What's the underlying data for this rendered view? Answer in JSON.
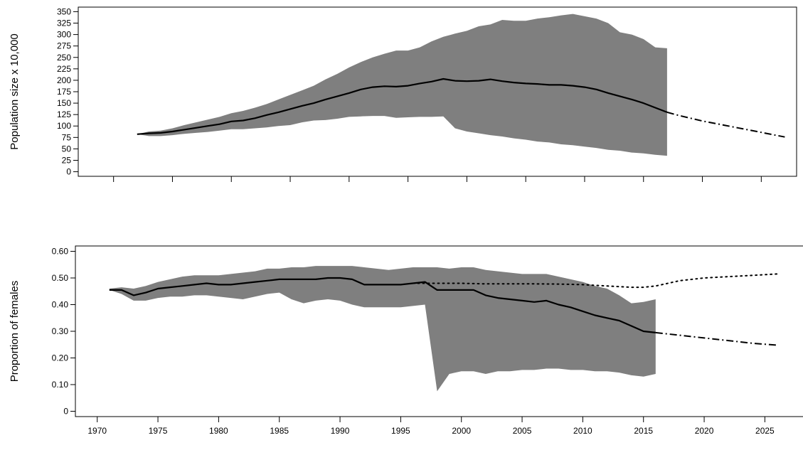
{
  "chart_data": [
    {
      "type": "area",
      "title": "",
      "xlabel": "",
      "ylabel": "Population size x 10,000",
      "xlim": [
        1967,
        2028
      ],
      "ylim": [
        -10,
        360
      ],
      "yticks": [
        0,
        25,
        50,
        75,
        100,
        125,
        150,
        175,
        200,
        225,
        250,
        275,
        300,
        325,
        350
      ],
      "xticks": [
        1970,
        1975,
        1980,
        1985,
        1990,
        1995,
        2000,
        2005,
        2010,
        2015,
        2020,
        2025
      ],
      "show_x_tick_labels": false,
      "grid": false,
      "band": {
        "color": "#7f7f7f",
        "x": [
          1972,
          1973,
          1974,
          1975,
          1976,
          1977,
          1978,
          1979,
          1980,
          1981,
          1982,
          1983,
          1984,
          1985,
          1986,
          1987,
          1988,
          1989,
          1990,
          1991,
          1992,
          1993,
          1994,
          1995,
          1996,
          1997,
          1998,
          1999,
          2000,
          2001,
          2002,
          2003,
          2004,
          2005,
          2006,
          2007,
          2008,
          2009,
          2010,
          2011,
          2012,
          2013,
          2014,
          2015,
          2016,
          2017
        ],
        "upper": [
          82,
          88,
          90,
          95,
          102,
          108,
          114,
          120,
          128,
          133,
          140,
          148,
          158,
          168,
          178,
          188,
          202,
          214,
          228,
          240,
          250,
          258,
          265,
          265,
          272,
          285,
          295,
          302,
          308,
          318,
          322,
          332,
          330,
          330,
          335,
          338,
          342,
          345,
          340,
          335,
          325,
          305,
          300,
          290,
          272,
          270
        ],
        "lower": [
          82,
          78,
          78,
          80,
          83,
          85,
          87,
          90,
          93,
          93,
          95,
          97,
          100,
          102,
          108,
          112,
          113,
          116,
          120,
          121,
          122,
          122,
          118,
          119,
          120,
          120,
          121,
          95,
          88,
          84,
          80,
          77,
          73,
          70,
          66,
          64,
          60,
          58,
          55,
          52,
          48,
          46,
          42,
          40,
          37,
          35
        ]
      },
      "series": [
        {
          "style": "solid",
          "x": [
            1972,
            1973,
            1974,
            1975,
            1976,
            1977,
            1978,
            1979,
            1980,
            1981,
            1982,
            1983,
            1984,
            1985,
            1986,
            1987,
            1988,
            1989,
            1990,
            1991,
            1992,
            1993,
            1994,
            1995,
            1996,
            1997,
            1998,
            1999,
            2000,
            2001,
            2002,
            2003,
            2004,
            2005,
            2006,
            2007,
            2008,
            2009,
            2010,
            2011,
            2012,
            2013,
            2014,
            2015,
            2016,
            2017
          ],
          "values": [
            82,
            84,
            85,
            88,
            92,
            96,
            100,
            104,
            110,
            112,
            117,
            124,
            130,
            137,
            144,
            150,
            158,
            165,
            172,
            180,
            185,
            187,
            186,
            188,
            193,
            197,
            203,
            199,
            198,
            199,
            202,
            198,
            195,
            193,
            192,
            190,
            190,
            188,
            185,
            180,
            172,
            165,
            158,
            150,
            140,
            130
          ]
        },
        {
          "style": "dashdot",
          "x": [
            2017,
            2018,
            2019,
            2020,
            2021,
            2022,
            2023,
            2024,
            2025,
            2026,
            2027
          ],
          "values": [
            130,
            123,
            117,
            111,
            106,
            101,
            96,
            91,
            86,
            81,
            76
          ]
        }
      ]
    },
    {
      "type": "area",
      "title": "",
      "xlabel": "",
      "ylabel": "Proportion of females",
      "xlim": [
        1968.2,
        2028.2
      ],
      "ylim": [
        -0.02,
        0.62
      ],
      "yticks": [
        0,
        0.1,
        0.2,
        0.3,
        0.4,
        0.5,
        0.6
      ],
      "ytick_labels": [
        "0",
        "0.10",
        "0.20",
        "0.30",
        "0.40",
        "0.50",
        "0.60"
      ],
      "xticks": [
        1970,
        1975,
        1980,
        1985,
        1990,
        1995,
        2000,
        2005,
        2010,
        2015,
        2020,
        2025
      ],
      "grid": false,
      "band": {
        "color": "#7f7f7f",
        "x": [
          1971,
          1972,
          1973,
          1974,
          1975,
          1976,
          1977,
          1978,
          1979,
          1980,
          1981,
          1982,
          1983,
          1984,
          1985,
          1986,
          1987,
          1988,
          1989,
          1990,
          1991,
          1992,
          1993,
          1994,
          1995,
          1996,
          1997,
          1998,
          1999,
          2000,
          2001,
          2002,
          2003,
          2004,
          2005,
          2006,
          2007,
          2008,
          2009,
          2010,
          2011,
          2012,
          2013,
          2014,
          2015,
          2016
        ],
        "upper": [
          0.46,
          0.465,
          0.46,
          0.47,
          0.485,
          0.495,
          0.505,
          0.51,
          0.51,
          0.51,
          0.515,
          0.52,
          0.525,
          0.535,
          0.535,
          0.54,
          0.54,
          0.545,
          0.545,
          0.545,
          0.545,
          0.54,
          0.535,
          0.53,
          0.535,
          0.54,
          0.54,
          0.54,
          0.535,
          0.54,
          0.54,
          0.53,
          0.525,
          0.52,
          0.515,
          0.515,
          0.515,
          0.505,
          0.495,
          0.485,
          0.47,
          0.46,
          0.435,
          0.405,
          0.41,
          0.42
        ],
        "lower": [
          0.455,
          0.44,
          0.415,
          0.415,
          0.425,
          0.43,
          0.43,
          0.435,
          0.435,
          0.43,
          0.425,
          0.42,
          0.43,
          0.44,
          0.445,
          0.42,
          0.405,
          0.415,
          0.42,
          0.415,
          0.4,
          0.39,
          0.39,
          0.39,
          0.39,
          0.395,
          0.4,
          0.075,
          0.14,
          0.15,
          0.15,
          0.14,
          0.15,
          0.15,
          0.155,
          0.155,
          0.16,
          0.16,
          0.155,
          0.155,
          0.15,
          0.15,
          0.145,
          0.135,
          0.13,
          0.14
        ]
      },
      "series": [
        {
          "style": "solid",
          "x": [
            1971,
            1972,
            1973,
            1974,
            1975,
            1976,
            1977,
            1978,
            1979,
            1980,
            1981,
            1982,
            1983,
            1984,
            1985,
            1986,
            1987,
            1988,
            1989,
            1990,
            1991,
            1992,
            1993,
            1994,
            1995,
            1996,
            1997,
            1998,
            1999,
            2000,
            2001,
            2002,
            2003,
            2004,
            2005,
            2006,
            2007,
            2008,
            2009,
            2010,
            2011,
            2012,
            2013,
            2014,
            2015,
            2016
          ],
          "values": [
            0.455,
            0.455,
            0.435,
            0.445,
            0.46,
            0.465,
            0.47,
            0.475,
            0.48,
            0.475,
            0.475,
            0.48,
            0.485,
            0.49,
            0.495,
            0.495,
            0.495,
            0.495,
            0.5,
            0.5,
            0.495,
            0.475,
            0.475,
            0.475,
            0.475,
            0.48,
            0.485,
            0.455,
            0.455,
            0.455,
            0.455,
            0.435,
            0.425,
            0.42,
            0.415,
            0.41,
            0.415,
            0.4,
            0.39,
            0.375,
            0.36,
            0.35,
            0.34,
            0.32,
            0.3,
            0.295
          ]
        },
        {
          "style": "dotted",
          "x": [
            1996,
            1998,
            2000,
            2002,
            2004,
            2006,
            2008,
            2010,
            2012,
            2014,
            2015,
            2016,
            2018,
            2020,
            2022,
            2024,
            2026
          ],
          "values": [
            0.48,
            0.48,
            0.48,
            0.478,
            0.478,
            0.478,
            0.477,
            0.475,
            0.47,
            0.465,
            0.465,
            0.47,
            0.49,
            0.5,
            0.505,
            0.51,
            0.515
          ]
        },
        {
          "style": "dashdot",
          "x": [
            2016,
            2018,
            2020,
            2022,
            2024,
            2026
          ],
          "values": [
            0.295,
            0.285,
            0.275,
            0.265,
            0.255,
            0.248
          ]
        }
      ]
    }
  ]
}
